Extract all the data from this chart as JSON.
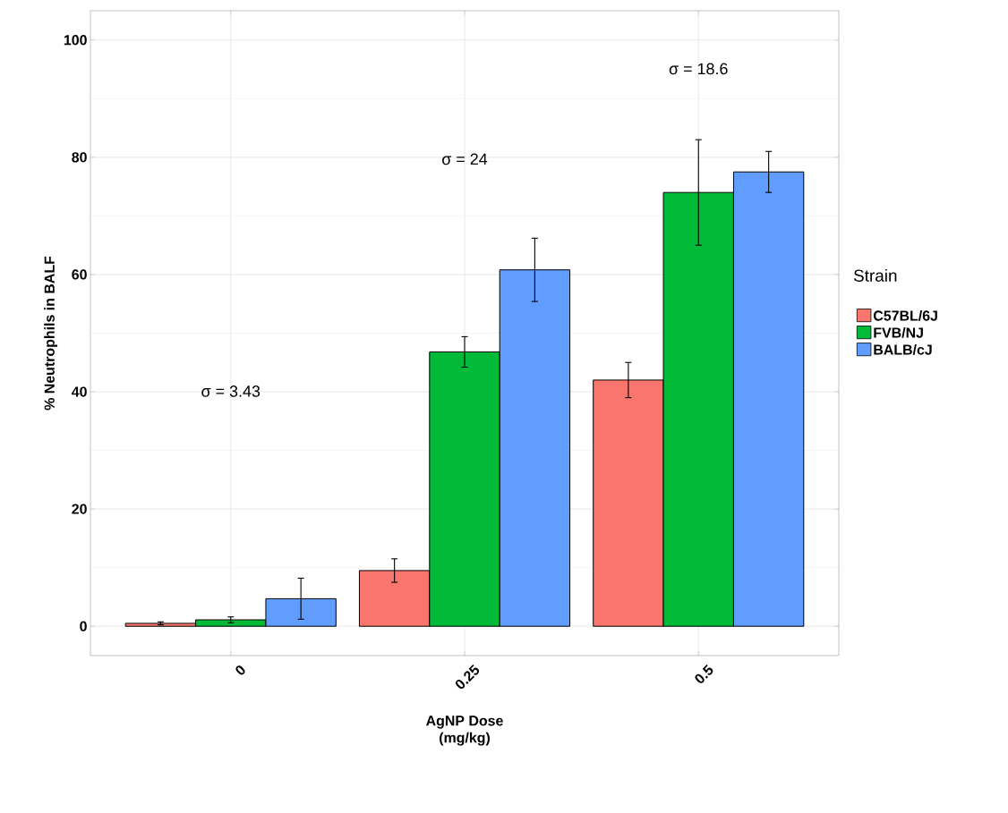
{
  "chart_data": {
    "type": "bar",
    "xlabel": "AgNP Dose\n(mg/kg)",
    "ylabel": "% Neutrophils in BALF",
    "legend_title": "Strain",
    "categories": [
      "0",
      "0.25",
      "0.5"
    ],
    "series": [
      {
        "name": "C57BL/6J",
        "color": "#f8766d",
        "values": [
          0.5,
          9.5,
          42.0
        ],
        "errors": [
          0.25,
          2.0,
          3.0
        ]
      },
      {
        "name": "FVB/NJ",
        "color": "#00ba38",
        "values": [
          1.1,
          46.8,
          74.0
        ],
        "errors": [
          0.5,
          2.6,
          9.0
        ]
      },
      {
        "name": "BALB/cJ",
        "color": "#619cff",
        "values": [
          4.7,
          60.8,
          77.5
        ],
        "errors": [
          3.5,
          5.4,
          3.5
        ]
      }
    ],
    "ylim": [
      -5,
      105
    ],
    "yticks": [
      0,
      20,
      40,
      60,
      80,
      100
    ],
    "grid": true,
    "legend": "right",
    "annotations": [
      "σ = 3.43",
      "σ = 24",
      "σ = 18.6"
    ]
  }
}
